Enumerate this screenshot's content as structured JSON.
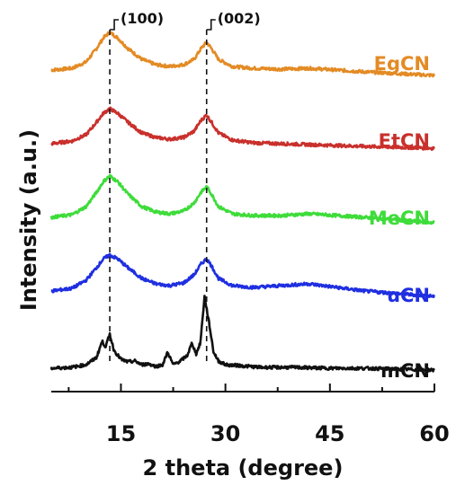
{
  "chart_data": {
    "type": "line",
    "xlabel": "2 theta (degree)",
    "ylabel": "Intensity (a.u.)",
    "xlim": [
      5,
      60
    ],
    "x_ticks": [
      15,
      30,
      45,
      60
    ],
    "x_ticks_labels": [
      "15",
      "30",
      "45",
      "60"
    ],
    "y_ticks_visible": false,
    "grid": false,
    "peak_annotations": [
      {
        "label": "(100)",
        "x": 13.4
      },
      {
        "label": "(002)",
        "x": 27.3
      }
    ],
    "series": [
      {
        "name": "EgCN",
        "color": "#E38B25",
        "offset": 4.0,
        "x": [
          5,
          8,
          10,
          11.5,
          12.5,
          13.4,
          14.5,
          16,
          18,
          20,
          22,
          24,
          25.5,
          26.5,
          27.3,
          28,
          29,
          31,
          34,
          38,
          42,
          46,
          50,
          55,
          60
        ],
        "y": [
          0.06,
          0.08,
          0.15,
          0.3,
          0.42,
          0.48,
          0.42,
          0.3,
          0.18,
          0.12,
          0.1,
          0.12,
          0.18,
          0.3,
          0.37,
          0.3,
          0.18,
          0.1,
          0.08,
          0.07,
          0.08,
          0.06,
          0.04,
          0.02,
          0.0
        ]
      },
      {
        "name": "EtCN",
        "color": "#C9302C",
        "offset": 3.0,
        "x": [
          5,
          8,
          10,
          11.5,
          12.5,
          13.4,
          14.5,
          16,
          18,
          20,
          22,
          24,
          25.5,
          26.5,
          27.3,
          28,
          29,
          31,
          34,
          38,
          42,
          46,
          50,
          55,
          60
        ],
        "y": [
          0.06,
          0.09,
          0.16,
          0.3,
          0.4,
          0.45,
          0.4,
          0.3,
          0.18,
          0.13,
          0.11,
          0.13,
          0.2,
          0.32,
          0.38,
          0.3,
          0.18,
          0.1,
          0.07,
          0.06,
          0.05,
          0.04,
          0.03,
          0.02,
          0.01
        ]
      },
      {
        "name": "MeCN",
        "color": "#3EDC3A",
        "offset": 2.0,
        "x": [
          5,
          8,
          10,
          11.5,
          12.5,
          13.4,
          14.5,
          16,
          18,
          20,
          22,
          24,
          25.5,
          26.5,
          27.3,
          28,
          29,
          31,
          34,
          38,
          42,
          46,
          50,
          55,
          60
        ],
        "y": [
          0.06,
          0.09,
          0.18,
          0.34,
          0.46,
          0.52,
          0.46,
          0.32,
          0.18,
          0.12,
          0.1,
          0.13,
          0.22,
          0.34,
          0.4,
          0.32,
          0.18,
          0.1,
          0.08,
          0.08,
          0.1,
          0.08,
          0.06,
          0.03,
          0.0
        ]
      },
      {
        "name": "uCN",
        "color": "#1F2FE0",
        "offset": 1.0,
        "x": [
          5,
          8,
          10,
          11.5,
          12.5,
          13.4,
          14.5,
          16,
          18,
          20,
          22,
          24,
          25.5,
          26.5,
          27.3,
          28,
          29,
          31,
          34,
          38,
          42,
          46,
          50,
          55,
          60
        ],
        "y": [
          0.06,
          0.09,
          0.18,
          0.32,
          0.42,
          0.46,
          0.42,
          0.32,
          0.2,
          0.14,
          0.12,
          0.15,
          0.24,
          0.36,
          0.42,
          0.34,
          0.2,
          0.12,
          0.1,
          0.12,
          0.14,
          0.1,
          0.06,
          0.03,
          0.0
        ]
      },
      {
        "name": "mCN",
        "color": "#111111",
        "offset": 0.0,
        "x": [
          5,
          8,
          10,
          11.5,
          12.3,
          12.8,
          13.4,
          14,
          15,
          16,
          17,
          18,
          19,
          20,
          21,
          21.7,
          22.5,
          23.5,
          24.5,
          25.2,
          25.8,
          26.4,
          27.0,
          27.6,
          28.3,
          29,
          30,
          32,
          35,
          40,
          45,
          50,
          55,
          60
        ],
        "y": [
          0.02,
          0.03,
          0.06,
          0.14,
          0.32,
          0.26,
          0.4,
          0.22,
          0.12,
          0.09,
          0.1,
          0.06,
          0.07,
          0.04,
          0.06,
          0.2,
          0.06,
          0.1,
          0.16,
          0.3,
          0.18,
          0.3,
          0.82,
          0.55,
          0.2,
          0.1,
          0.06,
          0.05,
          0.03,
          0.03,
          0.02,
          0.02,
          0.01,
          0.0
        ]
      }
    ]
  }
}
